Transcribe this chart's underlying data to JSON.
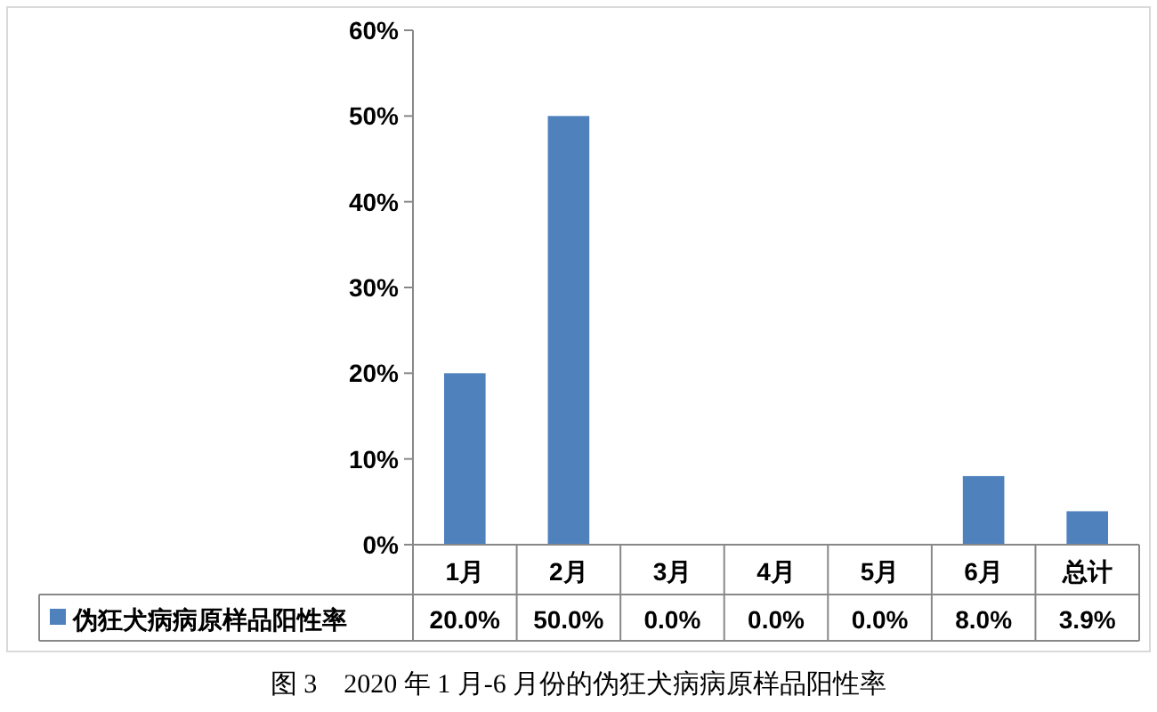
{
  "chart_data": {
    "type": "bar",
    "categories": [
      "1月",
      "2月",
      "3月",
      "4月",
      "5月",
      "6月",
      "总计"
    ],
    "series": [
      {
        "name": "伪狂犬病病原样品阳性率",
        "color": "#4f81bd",
        "values": [
          20.0,
          50.0,
          0.0,
          0.0,
          0.0,
          8.0,
          3.9
        ],
        "value_labels": [
          "20.0%",
          "50.0%",
          "0.0%",
          "0.0%",
          "0.0%",
          "8.0%",
          "3.9%"
        ]
      }
    ],
    "ylim": [
      0,
      60
    ],
    "yticks": [
      {
        "value": 0,
        "label": "0%"
      },
      {
        "value": 10,
        "label": "10%"
      },
      {
        "value": 20,
        "label": "20%"
      },
      {
        "value": 30,
        "label": "30%"
      },
      {
        "value": 40,
        "label": "40%"
      },
      {
        "value": 50,
        "label": "50%"
      },
      {
        "value": 60,
        "label": "60%"
      }
    ],
    "legend": "bottom left",
    "annotations": [
      "图 3　2020 年 1 月-6 月份的伪狂犬病病原样品阳性率"
    ]
  }
}
